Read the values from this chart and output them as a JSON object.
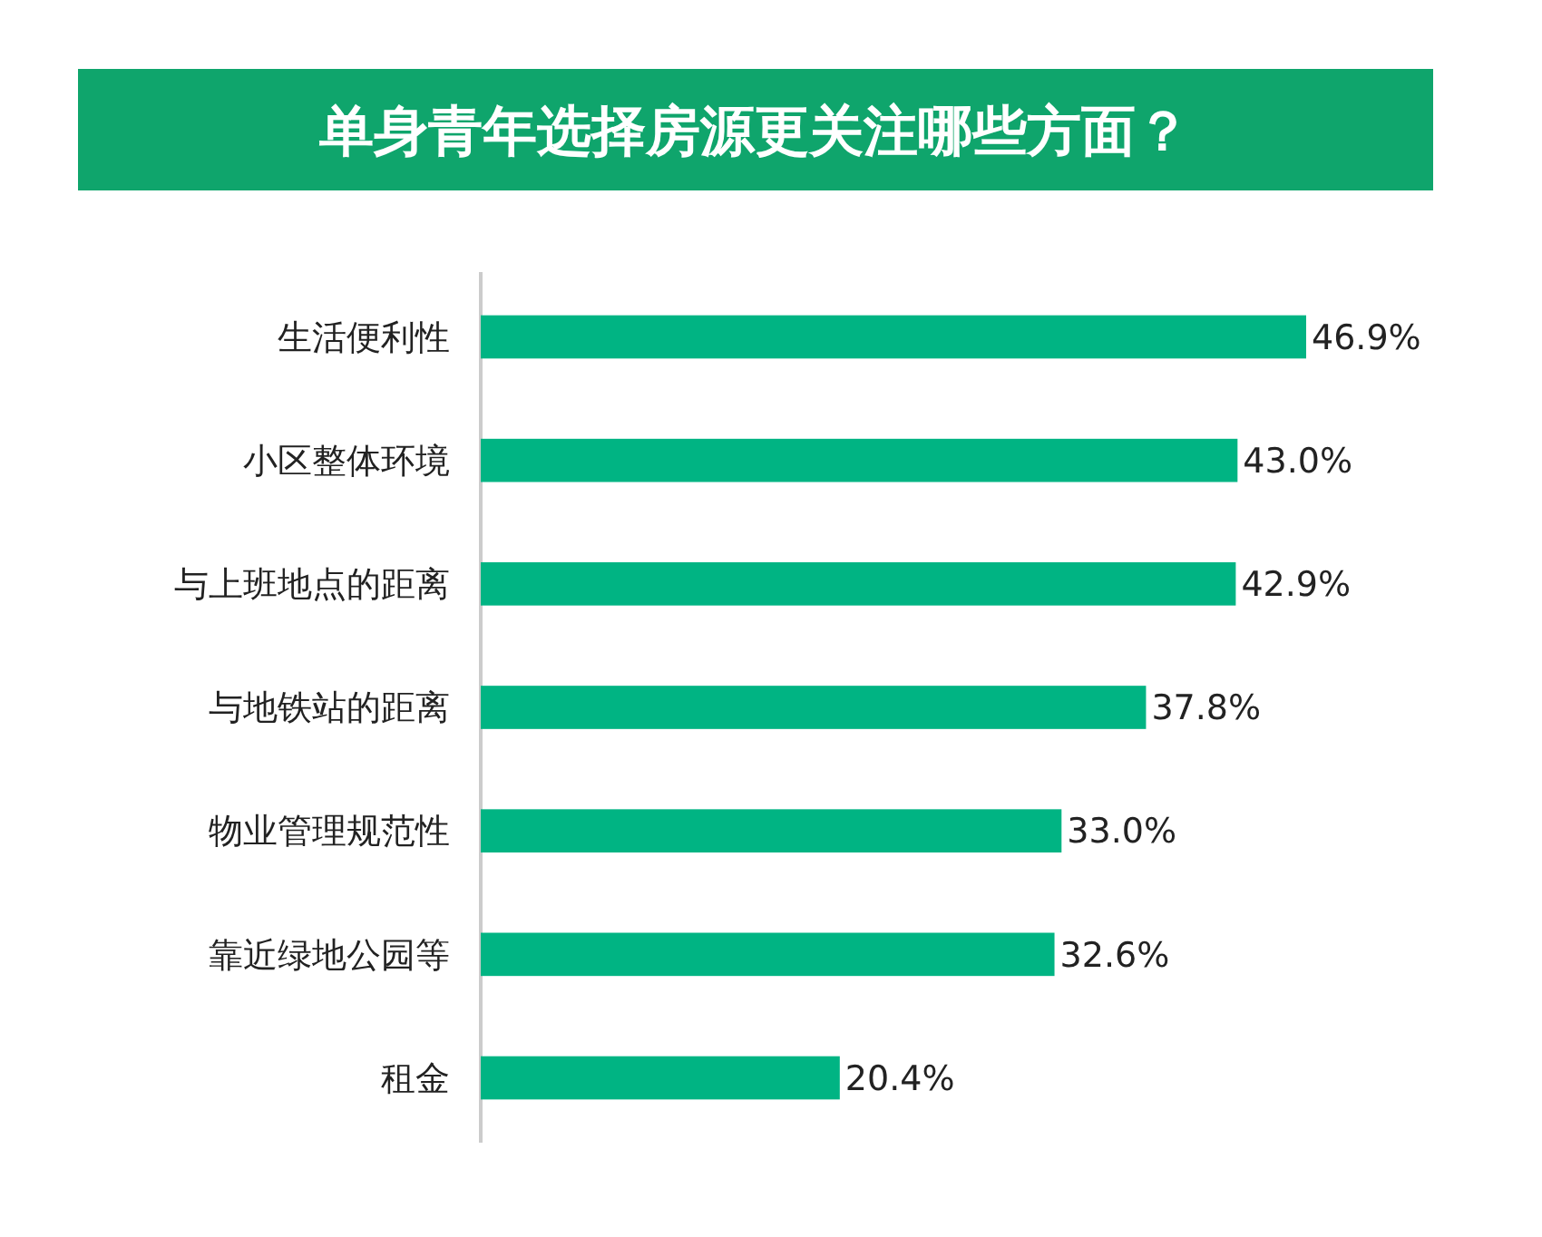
{
  "chart_data": {
    "type": "bar",
    "orientation": "horizontal",
    "title": "单身青年选择房源更关注哪些方面？",
    "categories": [
      "生活便利性",
      "小区整体环境",
      "与上班地点的距离",
      "与地铁站的距离",
      "物业管理规范性",
      "靠近绿地公园等",
      "租金"
    ],
    "values": [
      46.9,
      43.0,
      42.9,
      37.8,
      33.0,
      32.6,
      20.4
    ],
    "value_labels": [
      "46.9%",
      "43.0%",
      "42.9%",
      "37.8%",
      "33.0%",
      "32.6%",
      "20.4%"
    ],
    "color": "#00b483"
  }
}
